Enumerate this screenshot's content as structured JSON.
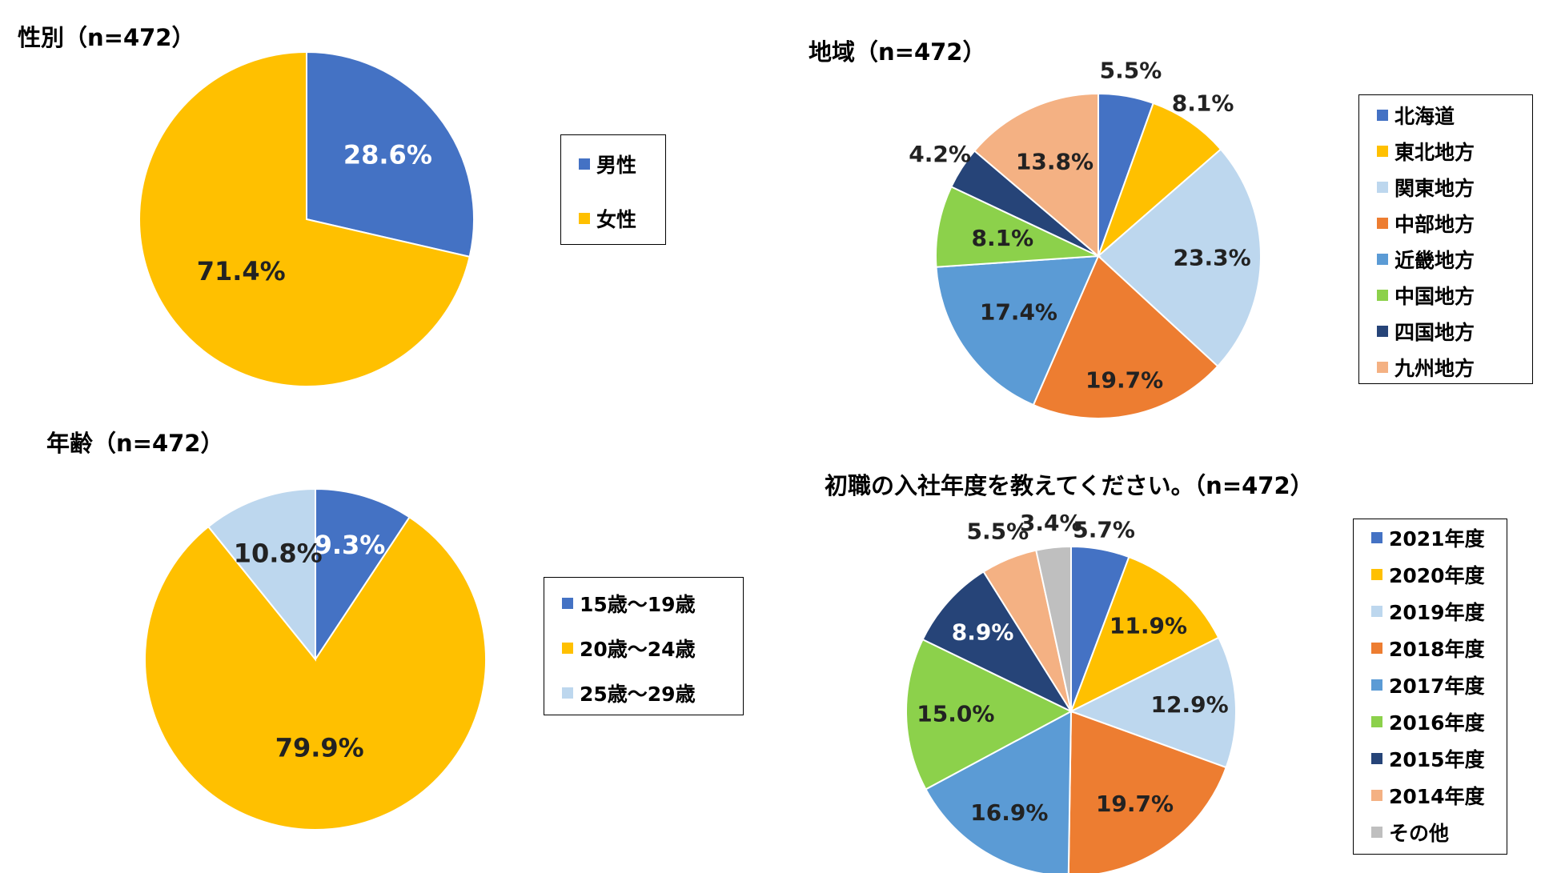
{
  "chart_data": [
    {
      "type": "pie",
      "title": "性別（n=472）",
      "categories": [
        "男性",
        "女性"
      ],
      "values": [
        28.6,
        71.4
      ],
      "labels": [
        "28.6%",
        "71.4%"
      ],
      "colors": [
        "#4472C4",
        "#FFC000"
      ],
      "label_colors": [
        "#ffffff",
        "#222222"
      ],
      "legend": "right"
    },
    {
      "type": "pie",
      "title": "地域（n=472）",
      "categories": [
        "北海道",
        "東北地方",
        "関東地方",
        "中部地方",
        "近畿地方",
        "中国地方",
        "四国地方",
        "九州地方"
      ],
      "values": [
        5.5,
        8.1,
        23.3,
        19.7,
        17.4,
        8.1,
        4.2,
        13.8
      ],
      "labels": [
        "5.5%",
        "8.1%",
        "23.3%",
        "19.7%",
        "17.4%",
        "8.1%",
        "4.2%",
        "13.8%"
      ],
      "colors": [
        "#4472C4",
        "#FFC000",
        "#BDD7EE",
        "#ED7D31",
        "#5B9BD5",
        "#8CD14B",
        "#264478",
        "#F4B183"
      ],
      "label_colors": [
        "#222222",
        "#222222",
        "#222222",
        "#222222",
        "#222222",
        "#222222",
        "#222222",
        "#222222"
      ],
      "legend": "right"
    },
    {
      "type": "pie",
      "title": "年齢（n=472）",
      "categories": [
        "15歳～19歳",
        "20歳～24歳",
        "25歳～29歳"
      ],
      "values": [
        9.3,
        79.9,
        10.8
      ],
      "labels": [
        "9.3%",
        "79.9%",
        "10.8%"
      ],
      "colors": [
        "#4472C4",
        "#FFC000",
        "#BDD7EE"
      ],
      "label_colors": [
        "#ffffff",
        "#222222",
        "#222222"
      ],
      "legend": "right"
    },
    {
      "type": "pie",
      "title": "初職の入社年度を教えてください。（n=472）",
      "categories": [
        "2021年度",
        "2020年度",
        "2019年度",
        "2018年度",
        "2017年度",
        "2016年度",
        "2015年度",
        "2014年度",
        "その他"
      ],
      "values": [
        5.7,
        11.9,
        12.9,
        19.7,
        16.9,
        15.0,
        8.9,
        5.5,
        3.4
      ],
      "labels": [
        "5.7%",
        "11.9%",
        "12.9%",
        "19.7%",
        "16.9%",
        "15.0%",
        "8.9%",
        "5.5%",
        "3.4%"
      ],
      "colors": [
        "#4472C4",
        "#FFC000",
        "#BDD7EE",
        "#ED7D31",
        "#5B9BD5",
        "#8CD14B",
        "#264478",
        "#F4B183",
        "#BFBFBF"
      ],
      "label_colors": [
        "#222222",
        "#222222",
        "#222222",
        "#222222",
        "#222222",
        "#222222",
        "#ffffff",
        "#222222",
        "#222222"
      ],
      "legend": "right"
    }
  ]
}
